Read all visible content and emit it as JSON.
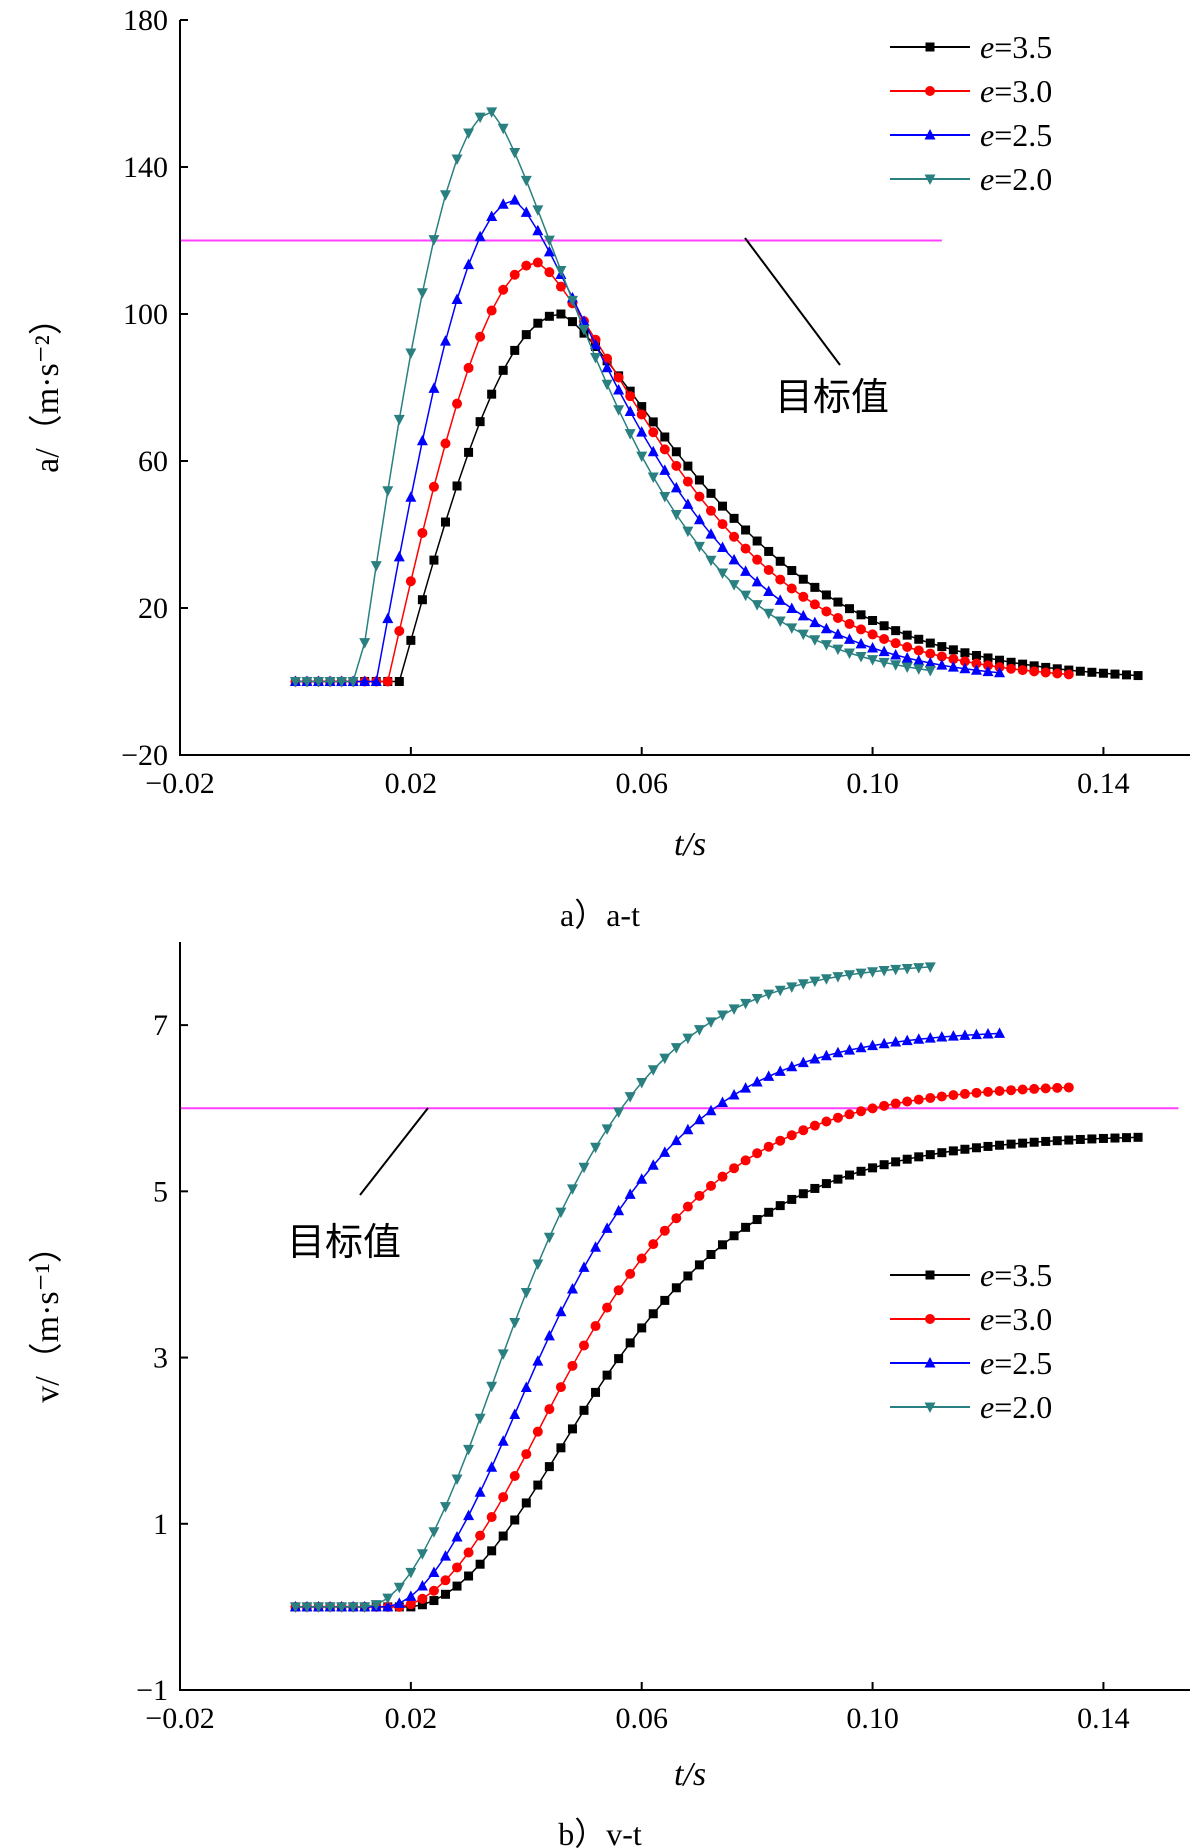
{
  "chart_data": [
    {
      "type": "line",
      "caption": "a）a-t",
      "xlabel": "t/s",
      "ylabel": "a/（m·s⁻²）",
      "xlim": [
        -0.02,
        0.155
      ],
      "ylim": [
        -20,
        180
      ],
      "xticks": [
        -0.02,
        0.02,
        0.06,
        0.1,
        0.14
      ],
      "xtick_labels": [
        "−0.02",
        "0.02",
        "0.06",
        "0.10",
        "0.14"
      ],
      "yticks": [
        -20,
        20,
        60,
        100,
        140,
        180
      ],
      "ytick_labels": [
        "−20",
        "20",
        "60",
        "100",
        "140",
        "180"
      ],
      "grid": false,
      "legend_position": "top-right",
      "target": {
        "label": "目标值",
        "value": 120,
        "x_range": [
          -0.02,
          0.112
        ]
      },
      "series": [
        {
          "name": "e=3.5",
          "e": "3.5",
          "color": "#000000",
          "marker": "square",
          "x_start": 0.0,
          "t0": 0.018,
          "t_end": 0.146,
          "peak_t": 0.046,
          "peak": 100,
          "tau": 0.028
        },
        {
          "name": "e=3.0",
          "e": "3.0",
          "color": "#ff0000",
          "marker": "circle",
          "x_start": 0.0,
          "t0": 0.016,
          "t_end": 0.134,
          "peak_t": 0.042,
          "peak": 114,
          "tau": 0.026
        },
        {
          "name": "e=2.5",
          "e": "2.5",
          "color": "#0000ff",
          "marker": "triangle-up",
          "x_start": 0.0,
          "t0": 0.014,
          "t_end": 0.122,
          "peak_t": 0.038,
          "peak": 131,
          "tau": 0.024
        },
        {
          "name": "e=2.0",
          "e": "2.0",
          "color": "#2a8080",
          "marker": "triangle-down",
          "x_start": 0.0,
          "t0": 0.011,
          "t_end": 0.11,
          "peak_t": 0.034,
          "peak": 155,
          "tau": 0.022
        }
      ]
    },
    {
      "type": "line",
      "caption": "b）v-t",
      "xlabel": "t/s",
      "ylabel": "v/（m·s⁻¹）",
      "xlim": [
        -0.02,
        0.155
      ],
      "ylim": [
        -1,
        8
      ],
      "xticks": [
        -0.02,
        0.02,
        0.06,
        0.1,
        0.14
      ],
      "xtick_labels": [
        "−0.02",
        "0.02",
        "0.06",
        "0.10",
        "0.14"
      ],
      "yticks": [
        -1,
        1,
        3,
        5,
        7
      ],
      "ytick_labels": [
        "−1",
        "1",
        "3",
        "5",
        "7"
      ],
      "grid": false,
      "legend_position": "right",
      "target": {
        "label": "目标值",
        "value": 6.0,
        "x_range": [
          -0.02,
          0.153
        ]
      },
      "series": [
        {
          "name": "e=3.5",
          "e": "3.5",
          "color": "#000000",
          "marker": "square",
          "x_start": 0.0,
          "t_end": 0.146,
          "v_end": 5.65
        },
        {
          "name": "e=3.0",
          "e": "3.0",
          "color": "#ff0000",
          "marker": "circle",
          "x_start": 0.0,
          "t_end": 0.134,
          "v_end": 6.25
        },
        {
          "name": "e=2.5",
          "e": "2.5",
          "color": "#0000ff",
          "marker": "triangle-up",
          "x_start": 0.0,
          "t_end": 0.122,
          "v_end": 6.9
        },
        {
          "name": "e=2.0",
          "e": "2.0",
          "color": "#2a8080",
          "marker": "triangle-down",
          "x_start": 0.0,
          "t_end": 0.11,
          "v_end": 7.7
        }
      ]
    }
  ]
}
